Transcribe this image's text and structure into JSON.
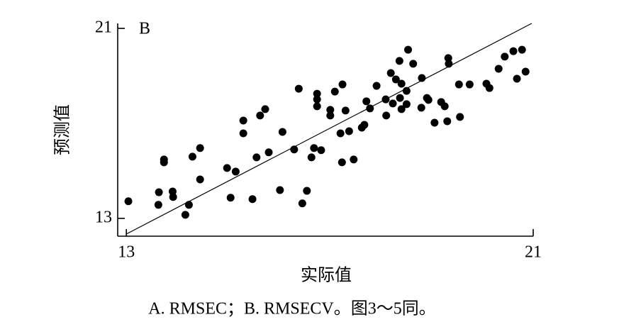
{
  "chart_data": {
    "type": "scatter",
    "panel_label": "B",
    "xlabel": "实际值",
    "ylabel": "预测值",
    "caption": "A. RMSEC；B. RMSECV。图3～5同。",
    "xlim": [
      12.83,
      21
    ],
    "ylim": [
      12.25,
      21.21
    ],
    "xticks": [
      13,
      21
    ],
    "yticks": [
      13,
      21
    ],
    "color": "#000000",
    "fit_line": {
      "x": [
        13,
        20.97
      ],
      "y": [
        12.34,
        21.21
      ]
    },
    "x": [
      13.04,
      13.63,
      13.64,
      13.74,
      13.74,
      13.91,
      13.92,
      14.16,
      14.23,
      14.3,
      14.45,
      14.45,
      14.98,
      15.05,
      15.15,
      15.3,
      15.3,
      15.48,
      15.56,
      15.63,
      15.73,
      15.8,
      16.02,
      16.07,
      16.3,
      16.39,
      16.46,
      16.55,
      16.64,
      16.69,
      16.75,
      16.75,
      16.75,
      16.83,
      17.01,
      17.01,
      17.1,
      17.24,
      17.21,
      17.25,
      17.31,
      17.38,
      17.47,
      17.63,
      17.68,
      17.72,
      17.79,
      17.92,
      18.1,
      18.11,
      18.2,
      18.24,
      18.3,
      18.37,
      18.38,
      18.41,
      18.41,
      18.51,
      18.51,
      18.54,
      18.64,
      18.8,
      18.81,
      18.91,
      18.94,
      19.06,
      19.19,
      19.26,
      19.31,
      19.33,
      19.34,
      19.54,
      19.56,
      19.75,
      20.08,
      20.14,
      20.32,
      20.44,
      20.61,
      20.68,
      20.78,
      20.85
    ],
    "values": [
      13.72,
      13.57,
      14.1,
      15.48,
      15.36,
      14.13,
      13.9,
      13.15,
      13.57,
      15.6,
      15.96,
      14.64,
      15.12,
      13.87,
      14.97,
      17.12,
      16.58,
      13.81,
      15.57,
      17.33,
      17.6,
      15.78,
      14.19,
      16.64,
      15.9,
      18.46,
      13.63,
      14.16,
      15.57,
      15.96,
      18.25,
      18.01,
      17.72,
      15.87,
      17.57,
      17.33,
      18.34,
      15.36,
      16.58,
      18.64,
      17.54,
      16.67,
      15.48,
      16.82,
      16.94,
      17.93,
      17.63,
      18.58,
      18.01,
      17.33,
      19.12,
      17.84,
      18.85,
      19.63,
      18.07,
      17.6,
      18.67,
      17.81,
      18.37,
      20.1,
      19.51,
      17.66,
      18.91,
      18.07,
      17.99,
      17.03,
      17.9,
      17.72,
      17.09,
      19.75,
      19.51,
      18.64,
      17.27,
      18.64,
      18.67,
      18.49,
      19.3,
      19.81,
      20.04,
      18.88,
      20.1,
      19.18
    ]
  }
}
